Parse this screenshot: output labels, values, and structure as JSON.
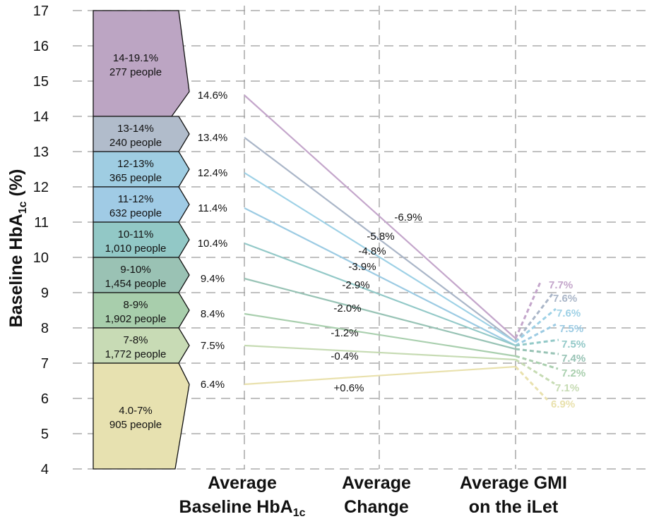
{
  "chart_data": {
    "type": "line",
    "ylabel_main": "Baseline HbA",
    "ylabel_sub": "1c",
    "ylabel_unit": " (%)",
    "ylim": [
      4,
      17
    ],
    "yticks": [
      4,
      5,
      6,
      7,
      8,
      9,
      10,
      11,
      12,
      13,
      14,
      15,
      16,
      17
    ],
    "grid": true,
    "columns": [
      {
        "line1": "Average",
        "line2_main": "Baseline HbA",
        "line2_sub": "1c"
      },
      {
        "line1": "Average",
        "line2_main": "Change",
        "line2_sub": ""
      },
      {
        "line1": "Average GMI",
        "line2_main": "on the iLet",
        "line2_sub": ""
      }
    ],
    "groups": [
      {
        "range": "14-19.1%",
        "people": "277 people",
        "y_low": 14,
        "y_high": 17,
        "baseline": 14.6,
        "baseline_label": "14.6%",
        "change_label": "-6.9%",
        "gmi": 7.7,
        "gmi_label": "7.7%",
        "color": "#bca5c3",
        "line_color": "#c4a6cb"
      },
      {
        "range": "13-14%",
        "people": "240 people",
        "y_low": 13,
        "y_high": 14,
        "baseline": 13.4,
        "baseline_label": "13.4%",
        "change_label": "-5.8%",
        "gmi": 7.6,
        "gmi_label": "7.6%",
        "color": "#b1bccb",
        "line_color": "#aab6c8"
      },
      {
        "range": "12-13%",
        "people": "365 people",
        "y_low": 12,
        "y_high": 13,
        "baseline": 12.4,
        "baseline_label": "12.4%",
        "change_label": "-4.8%",
        "gmi": 7.6,
        "gmi_label": "7.6%",
        "color": "#9fcde2",
        "line_color": "#9ed1e6"
      },
      {
        "range": "11-12%",
        "people": "632 people",
        "y_low": 11,
        "y_high": 12,
        "baseline": 11.4,
        "baseline_label": "11.4%",
        "change_label": "-3.9%",
        "gmi": 7.5,
        "gmi_label": "7.5%",
        "color": "#a0cbe5",
        "line_color": "#9ccbe3"
      },
      {
        "range": "10-11%",
        "people": "1,010 people",
        "y_low": 10,
        "y_high": 11,
        "baseline": 10.4,
        "baseline_label": "10.4%",
        "change_label": "-2.9%",
        "gmi": 7.5,
        "gmi_label": "7.5%",
        "color": "#92c8c6",
        "line_color": "#93c9c8"
      },
      {
        "range": "9-10%",
        "people": "1,454 people",
        "y_low": 9,
        "y_high": 10,
        "baseline": 9.4,
        "baseline_label": "9.4%",
        "change_label": "-2.0%",
        "gmi": 7.4,
        "gmi_label": "7.4%",
        "color": "#9ac2b4",
        "line_color": "#98c3b5"
      },
      {
        "range": "8-9%",
        "people": "1,902 people",
        "y_low": 8,
        "y_high": 9,
        "baseline": 8.4,
        "baseline_label": "8.4%",
        "change_label": "-1.2%",
        "gmi": 7.2,
        "gmi_label": "7.2%",
        "color": "#a8ceac",
        "line_color": "#a9cfae"
      },
      {
        "range": "7-8%",
        "people": "1,772 people",
        "y_low": 7,
        "y_high": 8,
        "baseline": 7.5,
        "baseline_label": "7.5%",
        "change_label": "-0.4%",
        "gmi": 7.1,
        "gmi_label": "7.1%",
        "color": "#c8dbb5",
        "line_color": "#c6dbb3"
      },
      {
        "range": "4.0-7%",
        "people": "905 people",
        "y_low": 4,
        "y_high": 7,
        "baseline": 6.4,
        "baseline_label": "6.4%",
        "change_label": "+0.6%",
        "gmi": 6.9,
        "gmi_label": "6.9%",
        "color": "#e7e1b0",
        "line_color": "#e9e1ad"
      }
    ]
  }
}
